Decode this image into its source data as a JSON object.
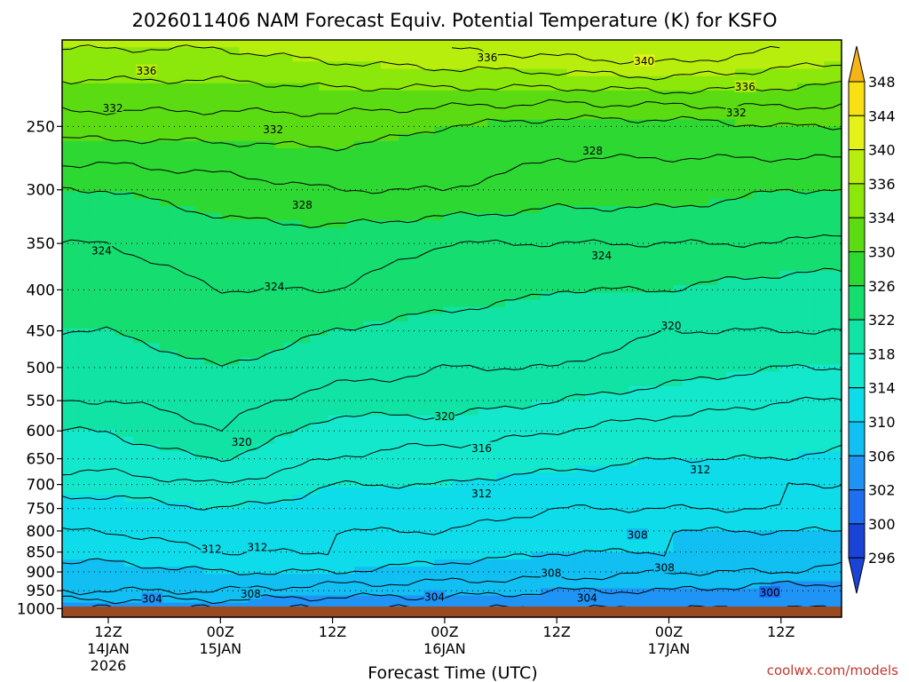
{
  "title": "2026011406 NAM Forecast Equiv. Potential Temperature (K) for KSFO",
  "xlabel": "Forecast Time (UTC)",
  "credit": "coolwx.com/models",
  "colors": {
    "ground": "#9a4a22"
  },
  "chart_data": {
    "type": "heatmap",
    "title": "2026011406 NAM Forecast Equiv. Potential Temperature (K) for KSFO",
    "xlabel": "Forecast Time (UTC)",
    "ylabel": "",
    "y_scale": "log",
    "y_reversed": true,
    "ylim": [
      1025,
      195
    ],
    "y_ticks": [
      250,
      300,
      350,
      400,
      450,
      500,
      550,
      600,
      650,
      700,
      750,
      800,
      850,
      900,
      950,
      1000
    ],
    "x_ticks": [
      {
        "label": "12Z",
        "sub": [
          "14JAN",
          "2026"
        ]
      },
      {
        "label": "00Z",
        "sub": [
          "15JAN"
        ]
      },
      {
        "label": "12Z",
        "sub": []
      },
      {
        "label": "00Z",
        "sub": [
          "16JAN"
        ]
      },
      {
        "label": "12Z",
        "sub": []
      },
      {
        "label": "00Z",
        "sub": [
          "17JAN"
        ]
      },
      {
        "label": "12Z",
        "sub": []
      }
    ],
    "grid": true,
    "colorbar": {
      "levels": [
        296,
        300,
        302,
        306,
        310,
        314,
        318,
        322,
        326,
        330,
        334,
        336,
        340,
        344,
        348
      ],
      "colors": [
        "#1a44d6",
        "#1e6ef0",
        "#1f94f5",
        "#11bff2",
        "#0fdcea",
        "#14e8cc",
        "#10e3a4",
        "#16dd70",
        "#2ed832",
        "#5bdc12",
        "#8ce80a",
        "#b8ee0d",
        "#e4f21a",
        "#f8e012",
        "#f5b417"
      ]
    },
    "profiles": [
      {
        "p": 1000,
        "values": [
          304,
          304,
          304,
          304,
          304,
          304,
          304,
          304
        ]
      },
      {
        "p": 950,
        "values": [
          308,
          308,
          307,
          307,
          306,
          306,
          305,
          305
        ]
      },
      {
        "p": 900,
        "values": [
          309,
          310,
          310,
          309,
          309,
          308,
          308,
          307
        ]
      },
      {
        "p": 850,
        "values": [
          311,
          312,
          312,
          311,
          310,
          310,
          309,
          309
        ]
      },
      {
        "p": 800,
        "values": [
          312,
          313,
          312,
          312,
          311,
          310,
          310,
          310
        ]
      },
      {
        "p": 750,
        "values": [
          313,
          314,
          313,
          313,
          312,
          312,
          312,
          311
        ]
      },
      {
        "p": 700,
        "values": [
          315,
          316,
          314,
          314,
          313,
          312,
          312,
          312
        ]
      },
      {
        "p": 650,
        "values": [
          317,
          318,
          316,
          315,
          315,
          314,
          314,
          313
        ]
      },
      {
        "p": 600,
        "values": [
          318,
          320,
          317,
          317,
          316,
          315,
          315,
          315
        ]
      },
      {
        "p": 550,
        "values": [
          320,
          321,
          319,
          319,
          318,
          317,
          316,
          316
        ]
      },
      {
        "p": 500,
        "values": [
          321,
          322,
          321,
          320,
          320,
          319,
          318,
          318
        ]
      },
      {
        "p": 450,
        "values": [
          322,
          323,
          322,
          321,
          321,
          320,
          320,
          320
        ]
      },
      {
        "p": 400,
        "values": [
          323,
          324,
          324,
          323,
          322,
          322,
          321,
          321
        ]
      },
      {
        "p": 350,
        "values": [
          324,
          325,
          325,
          324,
          324,
          324,
          324,
          323
        ]
      },
      {
        "p": 300,
        "values": [
          326,
          327,
          328,
          328,
          327,
          327,
          326,
          326
        ]
      },
      {
        "p": 250,
        "values": [
          331,
          331,
          331,
          330,
          329,
          329,
          330,
          330
        ]
      },
      {
        "p": 200,
        "values": [
          336,
          336,
          337,
          338,
          339,
          340,
          338,
          337
        ]
      }
    ],
    "contour_labels": [
      {
        "text": "336",
        "x": 0.34,
        "p": 213
      },
      {
        "text": "336",
        "x": 3.38,
        "p": 205
      },
      {
        "text": "340",
        "x": 4.78,
        "p": 207
      },
      {
        "text": "336",
        "x": 5.68,
        "p": 223
      },
      {
        "text": "332",
        "x": 0.04,
        "p": 237
      },
      {
        "text": "332",
        "x": 1.47,
        "p": 252
      },
      {
        "text": "332",
        "x": 5.6,
        "p": 240
      },
      {
        "text": "328",
        "x": 4.32,
        "p": 268
      },
      {
        "text": "328",
        "x": 1.73,
        "p": 313
      },
      {
        "text": "324",
        "x": -0.06,
        "p": 357
      },
      {
        "text": "324",
        "x": 4.4,
        "p": 362
      },
      {
        "text": "324",
        "x": 1.48,
        "p": 396
      },
      {
        "text": "320",
        "x": 5.02,
        "p": 443
      },
      {
        "text": "320",
        "x": 3.0,
        "p": 575
      },
      {
        "text": "320",
        "x": 1.19,
        "p": 619
      },
      {
        "text": "316",
        "x": 3.33,
        "p": 630
      },
      {
        "text": "312",
        "x": 5.28,
        "p": 670
      },
      {
        "text": "312",
        "x": 3.33,
        "p": 718
      },
      {
        "text": "312",
        "x": 1.33,
        "p": 838
      },
      {
        "text": "312",
        "x": 0.92,
        "p": 842
      },
      {
        "text": "308",
        "x": 4.72,
        "p": 808
      },
      {
        "text": "308",
        "x": 4.96,
        "p": 889
      },
      {
        "text": "308",
        "x": 3.95,
        "p": 902
      },
      {
        "text": "308",
        "x": 1.27,
        "p": 958
      },
      {
        "text": "304",
        "x": 0.39,
        "p": 972
      },
      {
        "text": "304",
        "x": 2.91,
        "p": 966
      },
      {
        "text": "304",
        "x": 4.27,
        "p": 969
      },
      {
        "text": "300",
        "x": 5.9,
        "p": 954
      }
    ]
  }
}
